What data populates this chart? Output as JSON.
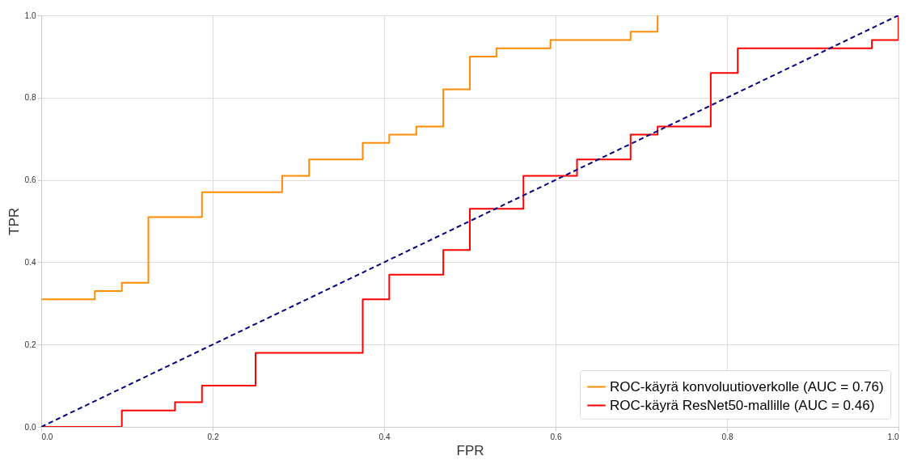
{
  "chart_data": {
    "type": "line",
    "xlabel": "FPR",
    "ylabel": "TPR",
    "xlim": [
      0,
      1
    ],
    "ylim": [
      0,
      1
    ],
    "xticks": [
      {
        "value": 0,
        "label": "0.0"
      },
      0.2,
      0.4,
      0.6,
      0.8,
      {
        "value": 1,
        "label": "1.0"
      }
    ],
    "yticks": [
      {
        "value": 0,
        "label": "0.0"
      },
      0.2,
      0.4,
      0.6,
      0.8,
      {
        "value": 1,
        "label": "1.0"
      }
    ],
    "grid": true,
    "legend": "bottom right",
    "marker": "none",
    "series": [
      {
        "name": "ROC-käyrä konvoluutioverkolle (AUC = 0.76)",
        "color": "#ff8c00",
        "line_style": "solid",
        "x": [
          0,
          0.0625,
          0.0625,
          0.094,
          0.094,
          0.125,
          0.125,
          0.1875,
          0.1875,
          0.281,
          0.281,
          0.3125,
          0.3125,
          0.375,
          0.375,
          0.406,
          0.406,
          0.4375,
          0.4375,
          0.469,
          0.469,
          0.5,
          0.5,
          0.531,
          0.531,
          0.594,
          0.594,
          0.6875,
          0.6875,
          0.719,
          0.719
        ],
        "values": [
          0.31,
          0.31,
          0.33,
          0.33,
          0.35,
          0.35,
          0.51,
          0.51,
          0.57,
          0.57,
          0.61,
          0.61,
          0.65,
          0.65,
          0.69,
          0.69,
          0.71,
          0.71,
          0.73,
          0.73,
          0.82,
          0.82,
          0.9,
          0.9,
          0.92,
          0.92,
          0.94,
          0.94,
          0.96,
          0.96,
          1.0
        ]
      },
      {
        "name": "ROC-käyrä ResNet50-mallille (AUC = 0.46)",
        "color": "#ff0000",
        "line_style": "solid",
        "x": [
          0,
          0.094,
          0.094,
          0.156,
          0.156,
          0.1875,
          0.1875,
          0.25,
          0.25,
          0.375,
          0.375,
          0.406,
          0.406,
          0.469,
          0.469,
          0.5,
          0.5,
          0.5625,
          0.5625,
          0.625,
          0.625,
          0.6875,
          0.6875,
          0.719,
          0.719,
          0.781,
          0.781,
          0.8125,
          0.8125,
          0.969,
          0.969,
          1.0,
          1.0
        ],
        "values": [
          0,
          0,
          0.04,
          0.04,
          0.06,
          0.06,
          0.1,
          0.1,
          0.18,
          0.18,
          0.31,
          0.31,
          0.37,
          0.37,
          0.43,
          0.43,
          0.53,
          0.53,
          0.61,
          0.61,
          0.65,
          0.65,
          0.71,
          0.71,
          0.73,
          0.73,
          0.86,
          0.86,
          0.92,
          0.92,
          0.94,
          0.94,
          1.0
        ]
      },
      {
        "color": "#000080",
        "line_style": "dashed",
        "x": [
          0,
          1
        ],
        "values": [
          0,
          1
        ]
      }
    ]
  }
}
